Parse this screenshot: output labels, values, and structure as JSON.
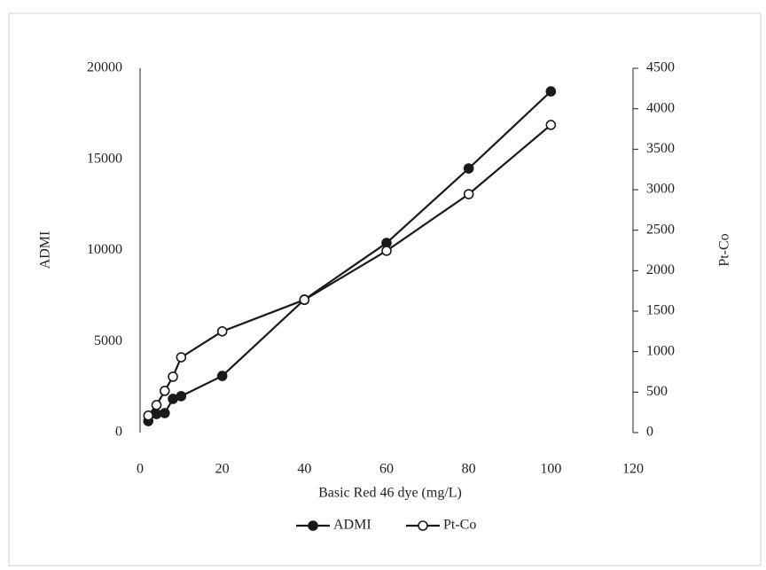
{
  "chart_data": {
    "type": "line",
    "x_label": "Basic Red 46 dye (mg/L)",
    "y_label": "ADMI",
    "y2_label": "Pt-Co",
    "x": [
      2,
      4,
      6,
      8,
      10,
      20,
      40,
      60,
      80,
      100
    ],
    "series": [
      {
        "name": "ADMI",
        "color": "#1a1a1a",
        "marker": "filled",
        "values": [
          630,
          1020,
          1070,
          1850,
          2000,
          3110,
          7300,
          10410,
          14500,
          18730
        ]
      },
      {
        "name": "Pt-Co",
        "color": "#1a1a1a",
        "marker": "open",
        "axis": "y2",
        "values": [
          210,
          340,
          515,
          690,
          930,
          1250,
          1640,
          2245,
          2945,
          3800
        ]
      }
    ],
    "xlim": [
      0,
      120
    ],
    "xticks": [
      0,
      20,
      40,
      60,
      80,
      100,
      120
    ],
    "ylim": [
      0,
      20000
    ],
    "yticks": [
      0,
      5000,
      10000,
      15000,
      20000
    ],
    "y2lim": [
      0,
      4500
    ],
    "y2ticks": [
      0,
      500,
      1000,
      1500,
      2000,
      2500,
      3000,
      3500,
      4000,
      4500
    ],
    "legend": "bottom",
    "grid": false
  }
}
